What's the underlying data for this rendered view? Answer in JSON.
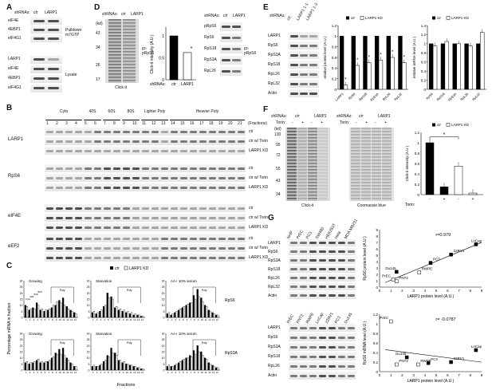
{
  "panelA": {
    "label": "A",
    "shRNAs_label": "shRNAs:",
    "lanes": [
      "ctr",
      "LARP1"
    ],
    "pulldown_rows": [
      "eIF4E",
      "4EBP1",
      "eIF4G1"
    ],
    "pulldown_label": [
      "Pulldown",
      "m7GTP"
    ],
    "lysate_rows": [
      "LARP1",
      "eIF4E",
      "4EBP1",
      "eIF4G1"
    ],
    "lysate_label": "Lysate"
  },
  "panelB": {
    "label": "B",
    "groups": [
      "Cyto",
      "40S",
      "60S",
      "80S",
      "Lighter Poly",
      "Heavier Poly"
    ],
    "fractions": [
      "1",
      "2",
      "3",
      "4",
      "5",
      "6",
      "7",
      "8",
      "9",
      "10",
      "11",
      "12",
      "13",
      "14",
      "15",
      "16",
      "17",
      "18",
      "19",
      "20",
      "21"
    ],
    "fractions_label": "(Fractions)",
    "rows": [
      {
        "protein": "LARP1",
        "conds": [
          "ctr",
          "ctr w/ Torin",
          "LARP1 KD"
        ]
      },
      {
        "protein": "RpS6",
        "conds": [
          "ctr",
          "ctr w/ Torin",
          "LARP1 KD"
        ]
      },
      {
        "protein": "eIF4E",
        "conds": [
          "ctr",
          "ctr w/ Torin",
          "LARP1 KD"
        ]
      },
      {
        "protein": "eEF2",
        "conds": [
          "ctr",
          "ctr w/ Torin",
          "LARP1 KD"
        ]
      }
    ]
  },
  "panelC": {
    "label": "C",
    "legend": [
      "ctr",
      "LARP1 KD"
    ],
    "ylabel": "Percentage mRNA in fraction",
    "xlabel": "Fractions",
    "poly_label": "Poly",
    "row_labels": [
      "RpS6",
      "RpS3A"
    ],
    "conditions": [
      "Growing",
      "Starvation",
      "AA+ 10% serum"
    ],
    "peak_labels": [
      "Cyto",
      "40S",
      "60S",
      "80S"
    ],
    "yticks": [
      "0",
      "5",
      "10",
      "15",
      "20",
      "25",
      "30"
    ],
    "chart_data": [
      {
        "type": "bar",
        "title": "Growing",
        "gene": "RpS6",
        "categories": [
          "1",
          "2",
          "3",
          "4",
          "5",
          "6",
          "7",
          "8",
          "9",
          "10",
          "11",
          "12",
          "13",
          "14"
        ],
        "series": [
          {
            "name": "ctr",
            "values": [
              10,
              6,
              8,
              12,
              6,
              5,
              6,
              8,
              10,
              14,
              16,
              9,
              6,
              4
            ]
          },
          {
            "name": "LARP1 KD",
            "values": [
              9,
              7,
              7,
              10,
              7,
              6,
              7,
              10,
              13,
              12,
              10,
              7,
              5,
              3
            ]
          }
        ],
        "ylim": [
          0,
          30
        ]
      },
      {
        "type": "bar",
        "title": "Starvation",
        "gene": "RpS6",
        "categories": [
          "1",
          "2",
          "3",
          "4",
          "5",
          "6",
          "7",
          "8",
          "9",
          "10",
          "11",
          "12",
          "13",
          "14"
        ],
        "series": [
          {
            "name": "ctr",
            "values": [
              4,
              3,
              5,
              9,
              20,
              17,
              8,
              6,
              5,
              4,
              3,
              2,
              2,
              1
            ]
          },
          {
            "name": "LARP1 KD",
            "values": [
              5,
              4,
              6,
              10,
              16,
              15,
              9,
              7,
              6,
              5,
              4,
              3,
              2,
              1
            ]
          }
        ],
        "ylim": [
          0,
          30
        ]
      },
      {
        "type": "bar",
        "title": "AA+ 10% serum",
        "gene": "RpS6",
        "categories": [
          "1",
          "2",
          "3",
          "4",
          "5",
          "6",
          "7",
          "8",
          "9",
          "10",
          "11",
          "12",
          "13",
          "14"
        ],
        "series": [
          {
            "name": "ctr",
            "values": [
              3,
              2,
              4,
              6,
              8,
              10,
              12,
              18,
              23,
              16,
              10,
              6,
              4,
              2
            ]
          },
          {
            "name": "LARP1 KD",
            "values": [
              4,
              3,
              5,
              7,
              9,
              11,
              12,
              15,
              17,
              13,
              9,
              5,
              3,
              2
            ]
          }
        ],
        "ylim": [
          0,
          30
        ]
      },
      {
        "type": "bar",
        "title": "Growing",
        "gene": "RpS3A",
        "categories": [
          "1",
          "2",
          "3",
          "4",
          "5",
          "6",
          "7",
          "8",
          "9",
          "10",
          "11",
          "12",
          "13",
          "14"
        ],
        "series": [
          {
            "name": "ctr",
            "values": [
              6,
              5,
              6,
              8,
              6,
              6,
              7,
              10,
              14,
              17,
              18,
              10,
              6,
              3
            ]
          },
          {
            "name": "LARP1 KD",
            "values": [
              7,
              6,
              7,
              9,
              7,
              7,
              8,
              11,
              13,
              13,
              12,
              8,
              5,
              3
            ]
          }
        ],
        "ylim": [
          0,
          30
        ]
      },
      {
        "type": "bar",
        "title": "Starvation",
        "gene": "RpS3A",
        "categories": [
          "1",
          "2",
          "3",
          "4",
          "5",
          "6",
          "7",
          "8",
          "9",
          "10",
          "11",
          "12",
          "13",
          "14"
        ],
        "series": [
          {
            "name": "ctr",
            "values": [
              3,
              3,
              4,
              7,
              12,
              18,
              14,
              8,
              6,
              5,
              4,
              3,
              2,
              1
            ]
          },
          {
            "name": "LARP1 KD",
            "values": [
              4,
              3,
              5,
              8,
              11,
              14,
              12,
              8,
              7,
              5,
              4,
              3,
              2,
              1
            ]
          }
        ],
        "ylim": [
          0,
          30
        ]
      },
      {
        "type": "bar",
        "title": "AA+ 10% serum",
        "gene": "RpS3A",
        "categories": [
          "1",
          "2",
          "3",
          "4",
          "5",
          "6",
          "7",
          "8",
          "9",
          "10",
          "11",
          "12",
          "13",
          "14"
        ],
        "series": [
          {
            "name": "ctr",
            "values": [
              3,
              3,
              4,
              6,
              8,
              10,
              12,
              16,
              20,
              15,
              10,
              6,
              4,
              2
            ]
          },
          {
            "name": "LARP1 KD",
            "values": [
              4,
              3,
              5,
              7,
              9,
              10,
              11,
              13,
              15,
              12,
              9,
              5,
              3,
              2
            ]
          }
        ],
        "ylim": [
          0,
          30
        ]
      }
    ]
  },
  "panelD": {
    "label": "D",
    "shRNAs_label": "shRNAs:",
    "lanes": [
      "ctr",
      "LARP1"
    ],
    "mw_label": "(kd)",
    "mw": [
      "43",
      "34",
      "26",
      "17"
    ],
    "left_caption": "Click-it",
    "ip_label": "IP: pRpS6",
    "chart_data": {
      "type": "bar",
      "categories": [
        "ctr",
        "LARP1"
      ],
      "values": [
        1.0,
        0.62
      ],
      "ylabel": "Click-it intensity (A.U.)",
      "yticks": [
        "0",
        "0.5",
        "1"
      ],
      "ylim": [
        0,
        1.2
      ]
    },
    "star": "*",
    "right_rows": [
      "pRpS6",
      "RpS6",
      "RpS18",
      "RpS3A",
      "RpL26"
    ],
    "right_ip_label": "IP: pRpS6"
  },
  "panelE": {
    "label": "E",
    "shRNAs_label": "shRNAs:",
    "lanes": [
      "ctr",
      "LARP1 1-1",
      "LARP1 1-3"
    ],
    "blot_rows": [
      "LARP1",
      "RpS6",
      "RpS3A",
      "RpS18",
      "RpL26",
      "RpL32",
      "Actin"
    ],
    "legend": [
      "ctr",
      "LARP1 KD"
    ],
    "chart_protein": {
      "type": "bar",
      "categories": [
        "LARP1",
        "RpS6",
        "RpS18",
        "RpS3A",
        "RpL26",
        "RpL32"
      ],
      "series": [
        {
          "name": "ctr",
          "values": [
            1,
            1,
            1,
            1,
            1,
            1
          ]
        },
        {
          "name": "LARP1 KD",
          "values": [
            0.08,
            0.45,
            0.5,
            0.55,
            0.6,
            0.5
          ]
        }
      ],
      "ylabel": "relative protein level (A.U.)",
      "yticks": [
        "0",
        "0.2",
        "0.4",
        "0.6",
        "0.8",
        "1",
        "1.2"
      ],
      "ylim": [
        0,
        1.2
      ]
    },
    "chart_mrna": {
      "type": "bar",
      "categories": [
        "RpS6",
        "RpS18",
        "RpS3A",
        "RpL26",
        "RpL32"
      ],
      "series": [
        {
          "name": "ctr",
          "values": [
            1,
            1,
            1,
            1,
            1
          ]
        },
        {
          "name": "LARP1 KD",
          "values": [
            0.95,
            1.05,
            1.0,
            0.95,
            1.25
          ]
        }
      ],
      "ylabel": "relative mRNA level (A.U.)",
      "yticks": [
        "0",
        "0.2",
        "0.4",
        "0.6",
        "0.8",
        "1",
        "1.2",
        "1.4"
      ],
      "ylim": [
        0,
        1.4
      ]
    }
  },
  "panelF": {
    "label": "F",
    "shRNAs_label": "shRNAs:",
    "torin_label": "Torin:",
    "lanes": [
      "ctr",
      "LARP1"
    ],
    "torin": [
      "-",
      "+",
      "-",
      "+"
    ],
    "mw_label": "(kd)",
    "mw": [
      "130",
      "95",
      "72",
      "55",
      "43",
      "34"
    ],
    "left_caption": "Click-it",
    "mid_caption": "Coomassie blue",
    "legend": [
      "ctr",
      "LARP1 KD"
    ],
    "chart_data": {
      "type": "bar",
      "categories": [
        "-",
        "+",
        "-",
        "+"
      ],
      "values": [
        1.0,
        0.15,
        0.55,
        0.03
      ],
      "ylabel": "Click-it intensity (A.U.)",
      "yticks": [
        "0",
        "0.2",
        "0.4",
        "0.6",
        "0.8",
        "1",
        "1.2"
      ],
      "ylim": [
        0,
        1.2
      ]
    },
    "torin_axis": "Torin:",
    "star": "*"
  },
  "panelG": {
    "label": "G",
    "top_lanes": [
      "NHP",
      "PrEC",
      "PC3",
      "SW480",
      "HEK293T",
      "Hela",
      "MDA MB231"
    ],
    "top_rows": [
      "LARP1",
      "RpS6",
      "RpS3A",
      "RpS18",
      "RpL26",
      "RpL32",
      "Actin"
    ],
    "bottom_lanes": [
      "PrEC",
      "PNT2",
      "RWPE",
      "LnCap",
      "22RV1",
      "PC3",
      "Du145"
    ],
    "bottom_rows": [
      "LARP1",
      "RpS6",
      "RpS3A",
      "RpS18",
      "RpL26",
      "Actin"
    ],
    "scatter_top": {
      "type": "scatter",
      "r": "r=0.979",
      "xlabel": "LARP1 protein level (A.U.)",
      "ylabel": "RpS6 protein level (A.U.)",
      "xticks": [
        "0",
        "1",
        "2",
        "3",
        "4",
        "5",
        "6",
        "7",
        "8",
        "9"
      ],
      "yticks": [
        "0",
        "1",
        "2",
        "3",
        "4",
        "5",
        "6",
        "7",
        "8",
        "9"
      ],
      "points": [
        {
          "label": "LnCap",
          "x": 8.5,
          "y": 6.7
        },
        {
          "label": "22RV1",
          "x": 6.3,
          "y": 5.1
        },
        {
          "label": "PC3",
          "x": 4.5,
          "y": 3.8
        },
        {
          "label": "RWPE",
          "x": 3.5,
          "y": 2.3
        },
        {
          "label": "Du145",
          "x": 1.5,
          "y": 2.4
        },
        {
          "label": "PrEC",
          "x": 1.2,
          "y": 1.2
        },
        {
          "label": "PNT2",
          "x": 1.5,
          "y": 0.9
        }
      ]
    },
    "scatter_bottom": {
      "type": "scatter",
      "r": "r= -0.0787",
      "xlabel": "LARP1 protein level (A.U.)",
      "ylabel": "RpS6 mRNA level (A.U.)",
      "xticks": [
        "0",
        "1",
        "2",
        "3",
        "4",
        "5",
        "6",
        "7",
        "8",
        "9"
      ],
      "yticks": [
        "0",
        "0.2",
        "0.4",
        "0.6",
        "0.8",
        "1",
        "1.2"
      ],
      "points": [
        {
          "label": "PrEC",
          "x": 1.0,
          "y": 1.05
        },
        {
          "label": "LnCap",
          "x": 8.5,
          "y": 0.45
        },
        {
          "label": "Du145",
          "x": 2.4,
          "y": 0.3
        },
        {
          "label": "PNT2",
          "x": 1.5,
          "y": 0.15
        },
        {
          "label": "RWPE",
          "x": 3.4,
          "y": 0.15
        },
        {
          "label": "PC3",
          "x": 4.3,
          "y": 0.18
        },
        {
          "label": "22RV1",
          "x": 6.3,
          "y": 0.2
        }
      ]
    }
  }
}
